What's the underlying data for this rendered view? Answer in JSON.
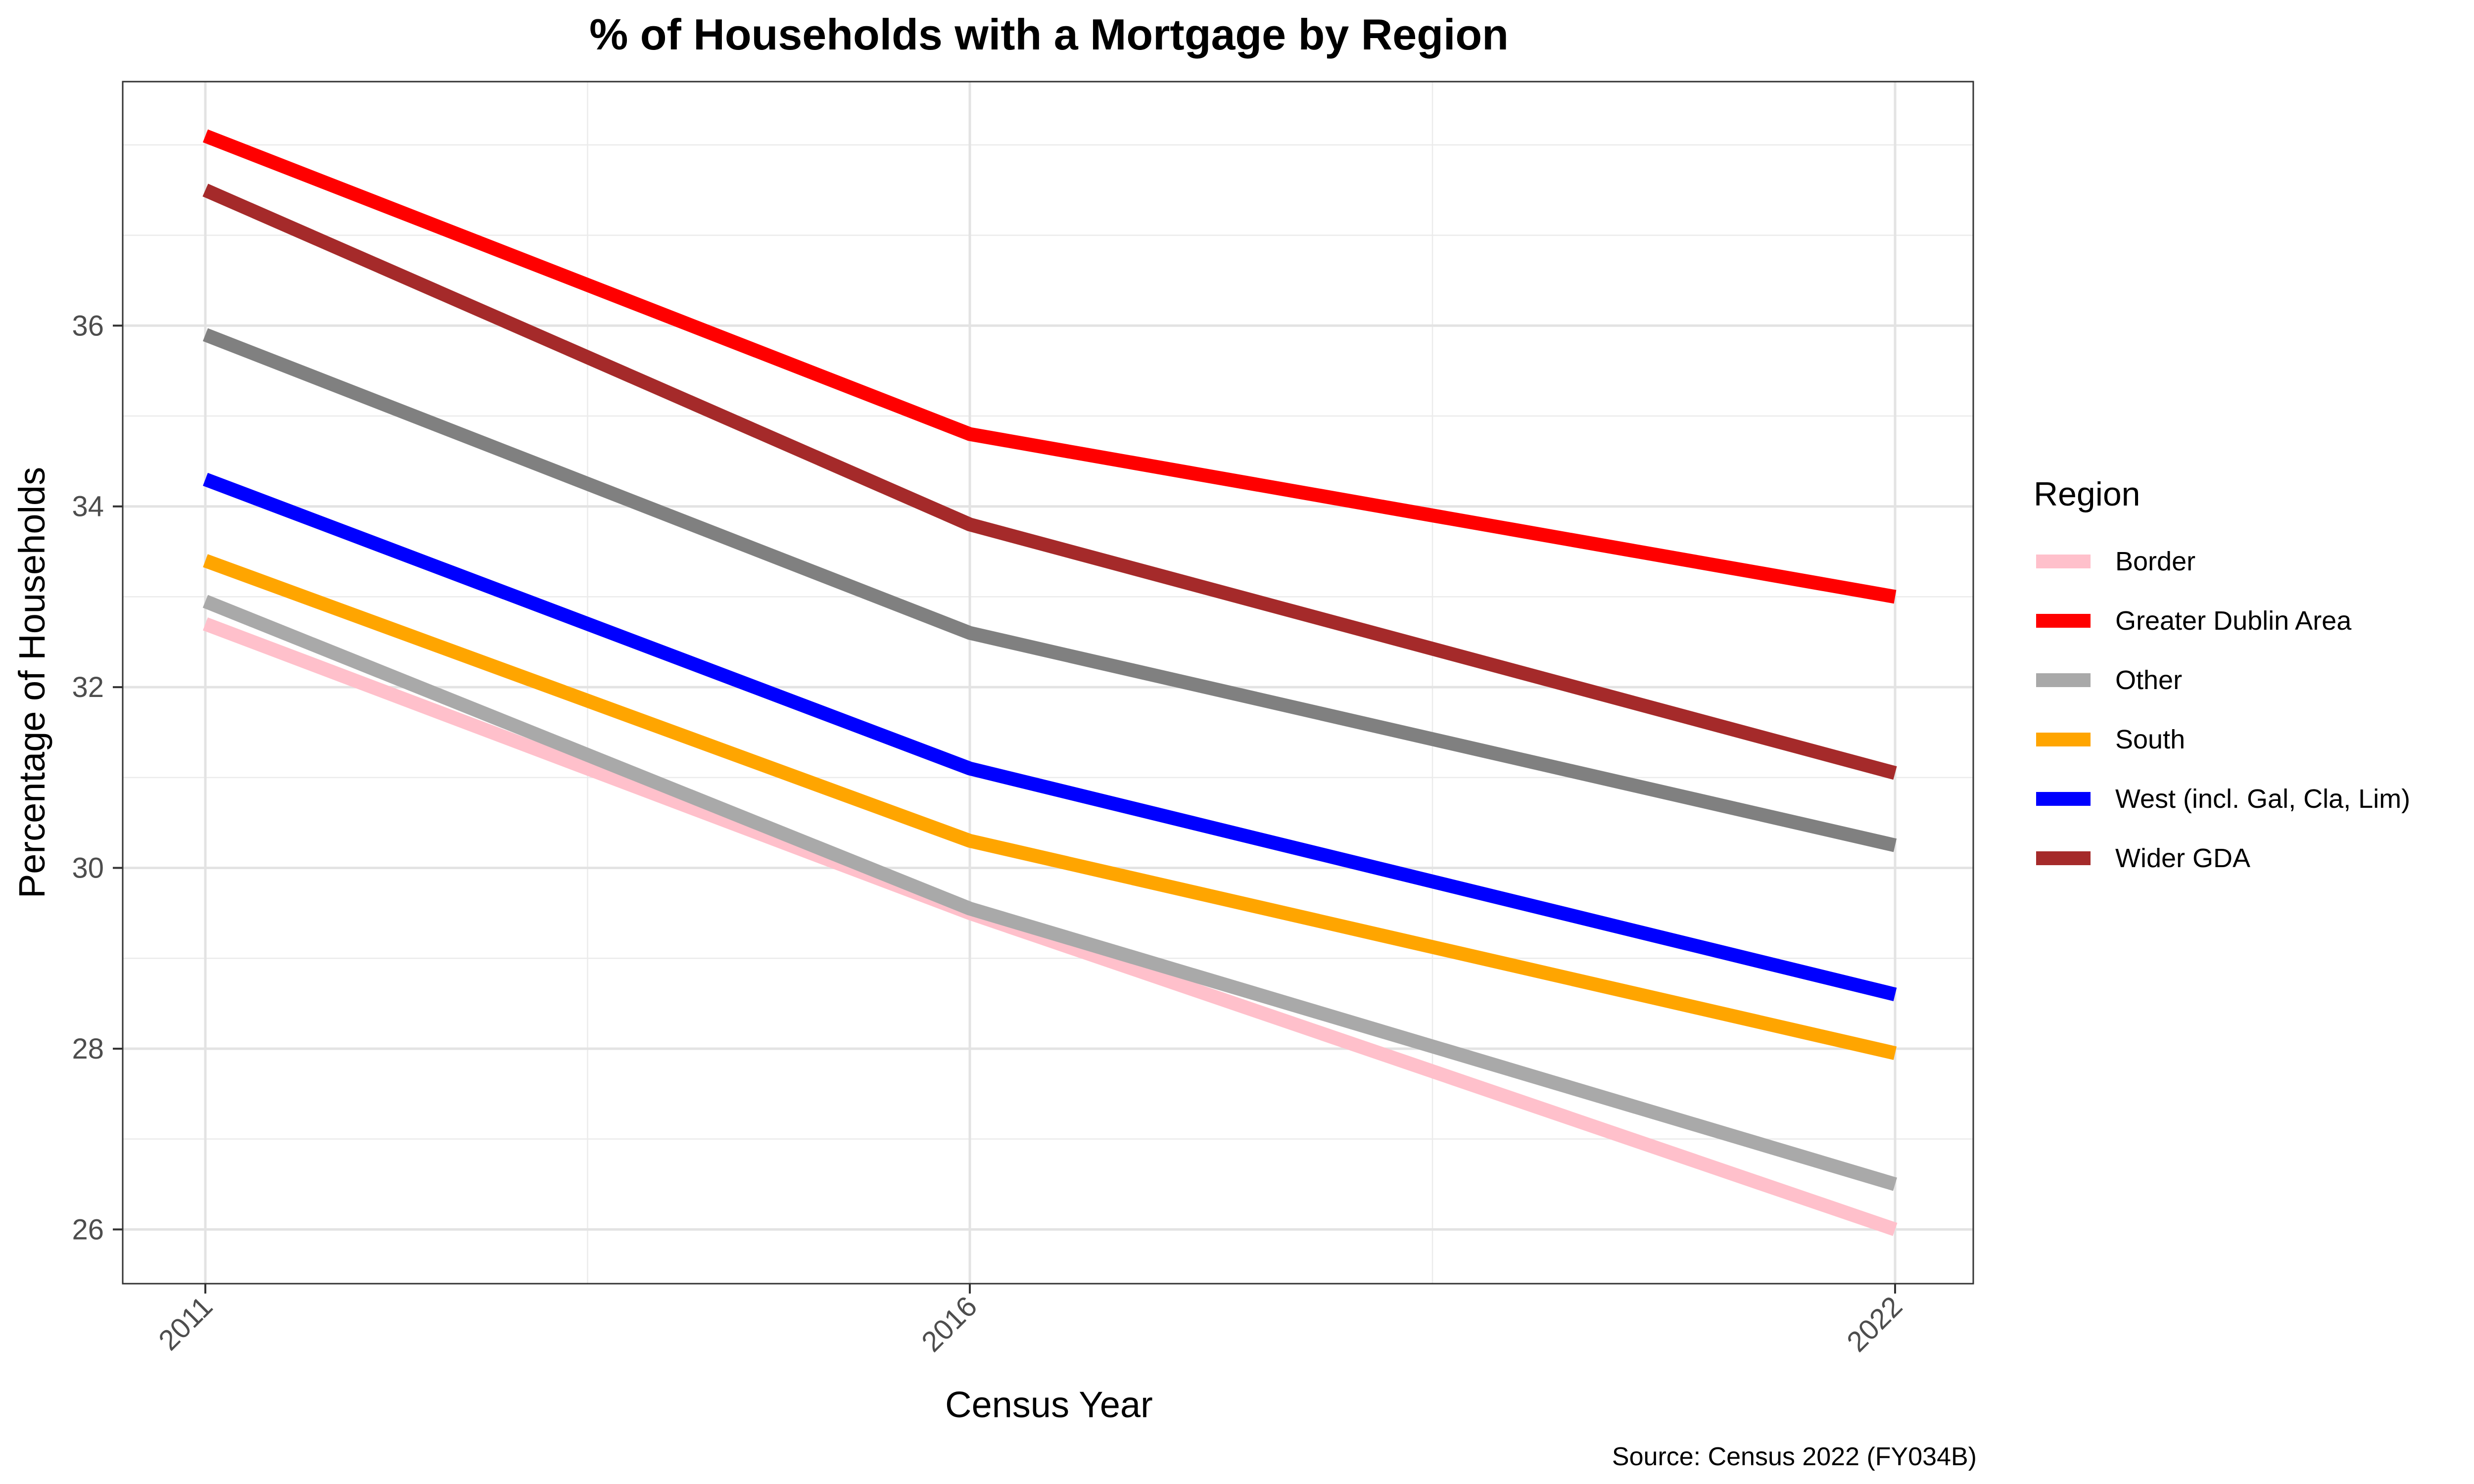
{
  "chart_data": {
    "type": "line",
    "title": "% of Households with a Mortgage by Region",
    "xlabel": "Census Year",
    "ylabel": "Percentage of Households",
    "caption": "Source: Census 2022 (FY034B)",
    "x": [
      2011,
      2016,
      2022
    ],
    "xticks": [
      "2011",
      "2016",
      "2022"
    ],
    "yticks": [
      26,
      28,
      30,
      32,
      34,
      36
    ],
    "ylim": [
      25.4,
      38.7
    ],
    "grid": true,
    "legend": {
      "title": "Region",
      "position": "right"
    },
    "series": [
      {
        "name": "Border",
        "color": "#FFC0CB",
        "values": [
          32.7,
          29.5,
          26.0
        ]
      },
      {
        "name": "Greater Dublin Area",
        "color": "#FF0000",
        "values": [
          38.1,
          34.8,
          33.0
        ]
      },
      {
        "name": "Other",
        "color": "#A9A9A9",
        "values": [
          32.95,
          29.55,
          26.5
        ]
      },
      {
        "name": "South",
        "color": "#FFA500",
        "values": [
          33.4,
          30.3,
          27.95
        ]
      },
      {
        "name": "West (incl. Gal, Cla, Lim)",
        "color": "#0000FF",
        "values": [
          34.3,
          31.1,
          28.6
        ]
      },
      {
        "name": "Wider GDA",
        "color": "#A52A2A",
        "values": [
          37.5,
          33.8,
          31.05
        ]
      }
    ],
    "extra_lines": [
      {
        "color": "#808080",
        "values": [
          35.9,
          32.6,
          30.25
        ]
      }
    ]
  }
}
